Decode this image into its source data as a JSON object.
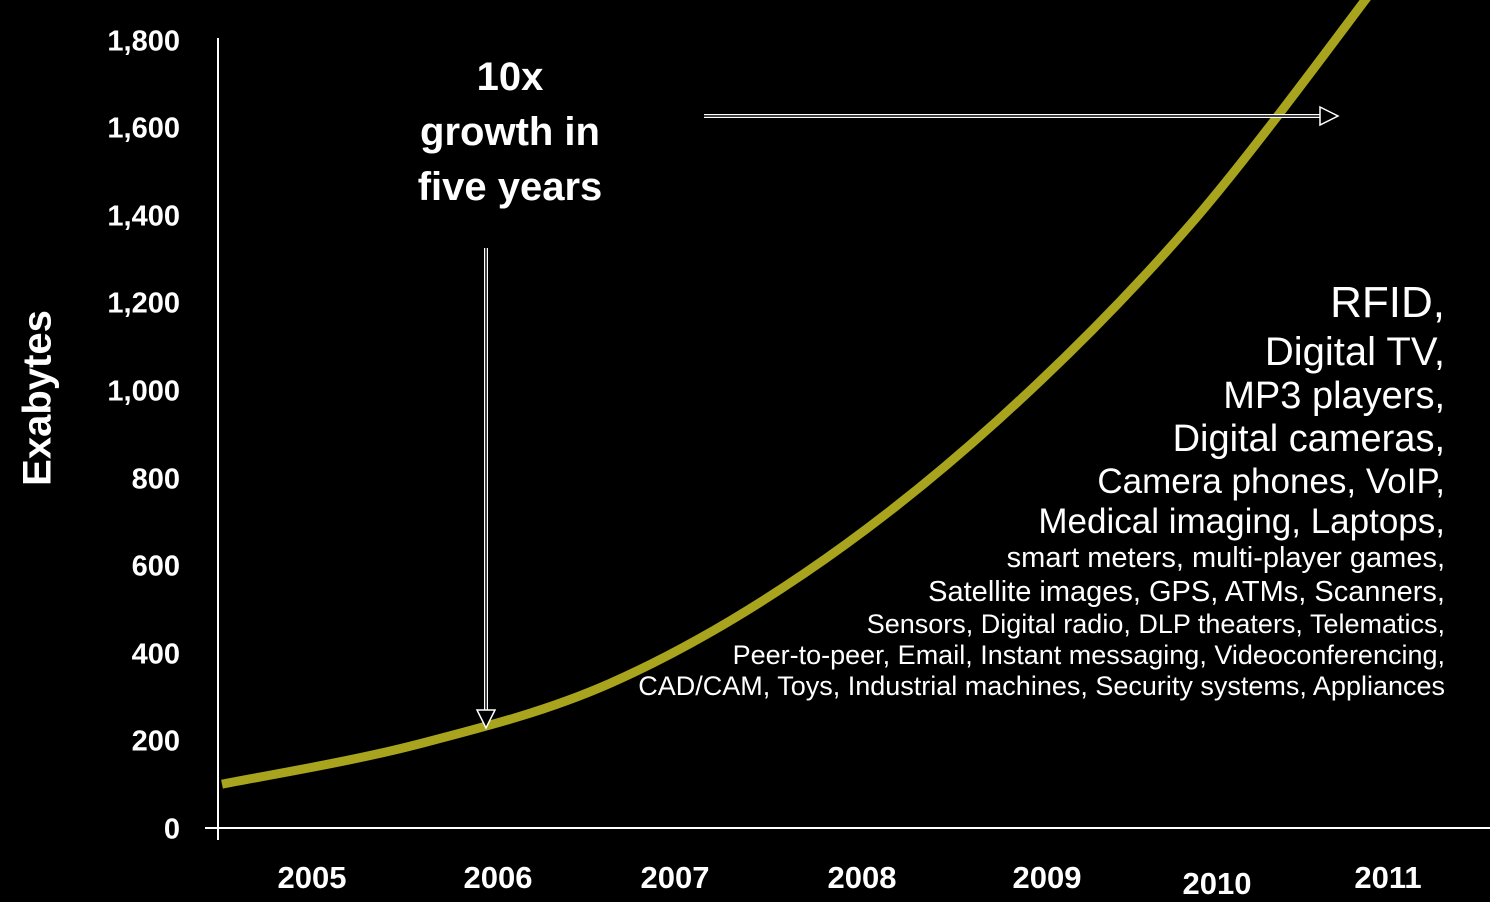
{
  "chart_data": {
    "type": "line",
    "ylabel": "Exabytes",
    "xlabel": "",
    "title": "",
    "x_ticks": [
      "2005",
      "2006",
      "2007",
      "2008",
      "2009",
      "2010",
      "2011"
    ],
    "y_ticks": [
      "0",
      "200",
      "400",
      "600",
      "800",
      "1,000",
      "1,200",
      "1,400",
      "1,600",
      "1,800"
    ],
    "ylim": [
      0,
      1800
    ],
    "xlim": [
      2005,
      2011
    ],
    "series": [
      {
        "color": "#A8A41E",
        "x": [
          2005,
          2006,
          2007,
          2008,
          2009,
          2010,
          2011
        ],
        "values": [
          100,
          190,
          330,
          580,
          930,
          1380,
          1950
        ]
      }
    ],
    "grid": false,
    "legend": "none"
  },
  "annotation": {
    "callout_lines": [
      "10x",
      "growth in",
      "five years"
    ]
  },
  "sources": {
    "lines": [
      "RFID,",
      "Digital TV,",
      "MP3 players,",
      "Digital cameras,",
      "Camera phones, VoIP,",
      "Medical imaging, Laptops,",
      "smart meters, multi-player games,",
      "Satellite images, GPS, ATMs, Scanners,",
      "Sensors, Digital radio, DLP theaters, Telematics,",
      "Peer-to-peer, Email, Instant messaging, Videoconferencing,",
      "CAD/CAM, Toys, Industrial machines, Security systems, Appliances"
    ]
  },
  "colors": {
    "background": "#000000",
    "text": "#FFFFFF",
    "curve": "#A8A41E"
  }
}
